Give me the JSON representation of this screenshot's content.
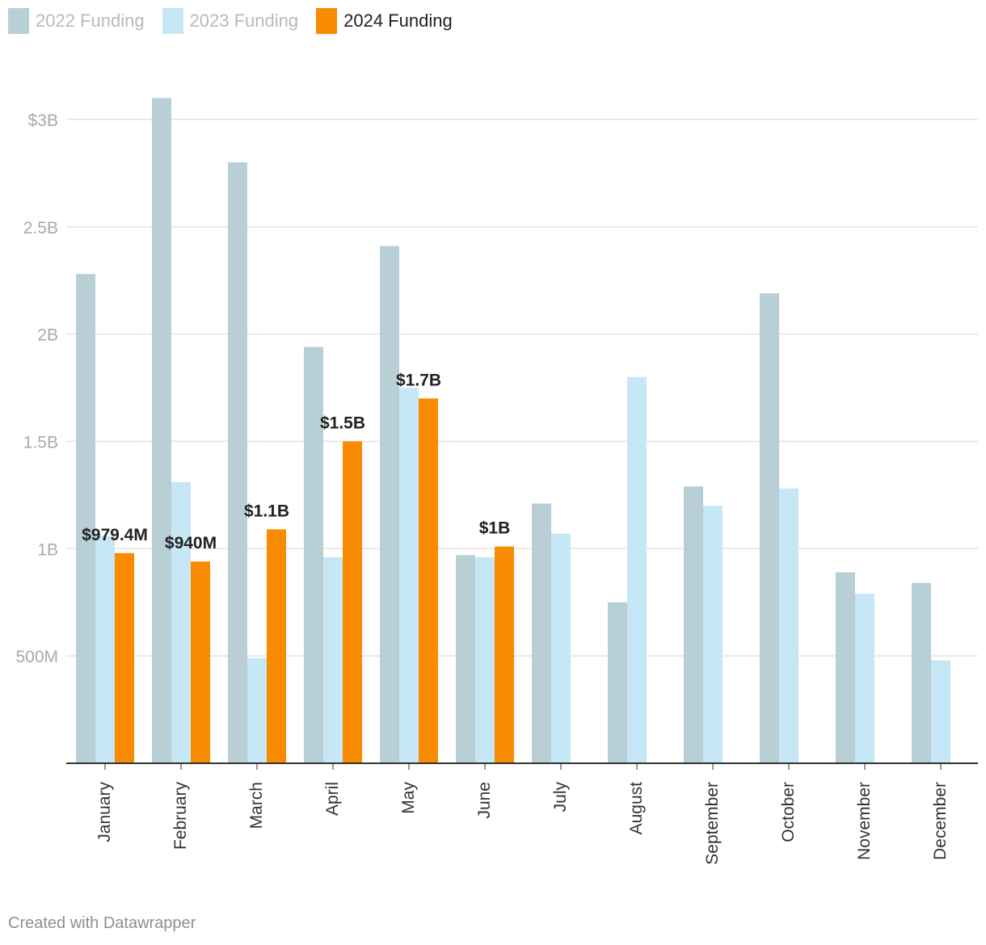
{
  "legend": {
    "items": [
      {
        "label": "2022 Funding",
        "color": "#b8cfd6"
      },
      {
        "label": "2023 Funding",
        "color": "#c6e7f5"
      },
      {
        "label": "2024 Funding",
        "color": "#f88b02"
      }
    ]
  },
  "footer": "Created with Datawrapper",
  "chart_data": {
    "type": "bar",
    "title": "",
    "xlabel": "",
    "ylabel": "",
    "ylim": [
      0,
      3000000000
    ],
    "grid": true,
    "legend_position": "top-left",
    "y_ticks": [
      {
        "value": 500000000,
        "label": "500M"
      },
      {
        "value": 1000000000,
        "label": "1B"
      },
      {
        "value": 1500000000,
        "label": "1.5B"
      },
      {
        "value": 2000000000,
        "label": "2B"
      },
      {
        "value": 2500000000,
        "label": "2.5B"
      },
      {
        "value": 3000000000,
        "label": "$3B"
      }
    ],
    "categories": [
      "January",
      "February",
      "March",
      "April",
      "May",
      "June",
      "July",
      "August",
      "September",
      "October",
      "November",
      "December"
    ],
    "series": [
      {
        "name": "2022 Funding",
        "color": "#b8cfd6",
        "values": [
          2280000000,
          3100000000,
          2800000000,
          1940000000,
          2410000000,
          970000000,
          1210000000,
          750000000,
          1290000000,
          2190000000,
          890000000,
          840000000
        ]
      },
      {
        "name": "2023 Funding",
        "color": "#c6e7f5",
        "values": [
          1060000000,
          1310000000,
          490000000,
          960000000,
          1750000000,
          960000000,
          1070000000,
          1800000000,
          1200000000,
          1280000000,
          790000000,
          480000000
        ]
      },
      {
        "name": "2024 Funding",
        "color": "#f88b02",
        "values": [
          979400000,
          940000000,
          1090000000,
          1500000000,
          1700000000,
          1010000000,
          null,
          null,
          null,
          null,
          null,
          null
        ],
        "data_labels": [
          "$979.4M",
          "$940M",
          "$1.1B",
          "$1.5B",
          "$1.7B",
          "$1B",
          "",
          "",
          "",
          "",
          "",
          ""
        ]
      }
    ]
  }
}
